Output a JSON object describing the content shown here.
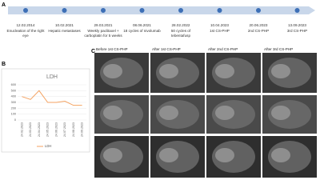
{
  "panel_labels": [
    "A",
    "B",
    "C"
  ],
  "timeline": [
    {
      "date": "12.02.2014",
      "text": "Enucleation of the right eye"
    },
    {
      "date": "10.02.2021",
      "text": "Hepatic metastases"
    },
    {
      "date": "29.03.2021",
      "text": "Weekly paclitaxel + carboplatin for 5 weeks"
    },
    {
      "date": "08.06.2021",
      "text": "18 cycles of nivolumab"
    },
    {
      "date": "28.02.2022",
      "text": "50 cycles of tebentafusp"
    },
    {
      "date": "10.04.2023",
      "text": "1st CS-PHP"
    },
    {
      "date": "20.06.2023",
      "text": "2nd CS-PHP"
    },
    {
      "date": "13.09.2023",
      "text": "3rd CS-PHP"
    }
  ],
  "chart_data": {
    "type": "line",
    "title": "LDH",
    "categories": [
      "24.02.2023",
      "24.03.2023",
      "24.04.2023",
      "24.05.2023",
      "24.06.2023",
      "24.07.2023",
      "24.08.2023",
      "24.09.2023"
    ],
    "series": [
      {
        "name": "LDH",
        "color": "#f4a261",
        "values": [
          400,
          350,
          500,
          300,
          300,
          320,
          250,
          250
        ]
      }
    ],
    "ylim": [
      0,
      600
    ],
    "yticks": [
      0,
      100,
      200,
      300,
      400,
      500,
      600
    ],
    "grid": true
  },
  "image_panel": {
    "headers": [
      "Before 1st CS-PHP",
      "After 1st CS-PHP",
      "After 2nd CS-PHP",
      "After 3rd CS-PHP"
    ]
  }
}
